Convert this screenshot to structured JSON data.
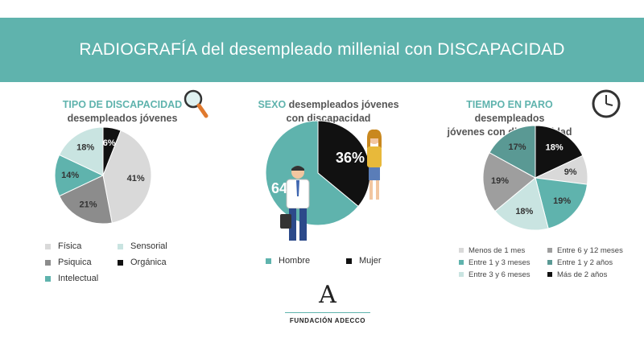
{
  "header": {
    "title": "RADIOGRAFÍA del desempleado millenial con DISCAPACIDAD"
  },
  "panels": {
    "tipo": {
      "title_accent": "TIPO DE DISCAPACIDAD",
      "subtitle": "desempleados jóvenes",
      "icon": "magnifier-icon"
    },
    "sexo": {
      "title_accent": "SEXO",
      "title_rest": " desempleados jóvenes",
      "subtitle": "con discapacidad",
      "icon": "people-icon"
    },
    "tiempo": {
      "title_accent": "TIEMPO EN PARO",
      "title_rest": " desempleados",
      "subtitle": "jóvenes con discapacidad",
      "icon": "clock-icon"
    }
  },
  "colors": {
    "accent": "#5fb3ad",
    "banner": "#5fb3ad"
  },
  "chart_data": [
    {
      "type": "pie",
      "categories": [
        "Orgánica",
        "Física",
        "Psiquica",
        "Intelectual",
        "Sensorial"
      ],
      "values": [
        6,
        41,
        21,
        14,
        18
      ],
      "labels": [
        "6%",
        "41%",
        "21%",
        "14%",
        "18%"
      ],
      "colors": [
        "#111111",
        "#d9d9d9",
        "#8c8c8c",
        "#5fb3ad",
        "#c9e4e1"
      ],
      "legend": [
        "Física",
        "Sensorial",
        "Psiquica",
        "Orgánica",
        "Intelectual"
      ],
      "legend_colors": [
        "#d9d9d9",
        "#c9e4e1",
        "#8c8c8c",
        "#111111",
        "#5fb3ad"
      ]
    },
    {
      "type": "pie",
      "categories": [
        "Mujer",
        "Hombre"
      ],
      "values": [
        36,
        64
      ],
      "labels": [
        "36%",
        "64%"
      ],
      "colors": [
        "#111111",
        "#5fb3ad"
      ],
      "legend": [
        "Hombre",
        "Mujer"
      ],
      "legend_colors": [
        "#5fb3ad",
        "#111111"
      ]
    },
    {
      "type": "pie",
      "categories": [
        "Más de 2 años",
        "Menos de 1 mes",
        "Entre 1 y 3 meses",
        "Entre 3 y 6 meses",
        "Entre 6 y 12 meses",
        "Entre 1 y 2 años"
      ],
      "values": [
        18,
        9,
        19,
        18,
        19,
        17
      ],
      "labels": [
        "18%",
        "9%",
        "19%",
        "18%",
        "19%",
        "17%"
      ],
      "colors": [
        "#111111",
        "#d9d9d9",
        "#5fb3ad",
        "#c9e4e1",
        "#9e9e9e",
        "#5a9994"
      ],
      "legend": [
        "Menos de 1 mes",
        "Entre 6 y 12 meses",
        "Entre 1 y 3 meses",
        "Entre 1 y 2 años",
        "Entre 3 y 6 meses",
        "Más de 2 años"
      ],
      "legend_colors": [
        "#d9d9d9",
        "#9e9e9e",
        "#5fb3ad",
        "#5a9994",
        "#c9e4e1",
        "#111111"
      ]
    }
  ],
  "footer": {
    "logo_mark": "A",
    "logo_text": "FUNDACIÓN ADECCO"
  }
}
